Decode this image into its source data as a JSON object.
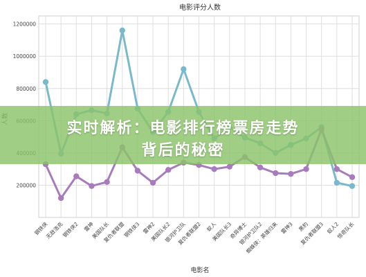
{
  "chart_data": {
    "type": "line",
    "title": "电影评分人数",
    "xlabel": "电影名",
    "ylabel": "人数",
    "categories": [
      "钢铁侠",
      "无敌浩克",
      "钢铁侠2",
      "雷神",
      "美国队长",
      "复仇者联盟",
      "钢铁侠3",
      "雷神2",
      "美国队长2",
      "银河护卫队",
      "复仇者联盟2",
      "蚁人",
      "美国队长3",
      "奇异博士",
      "银河护卫队2",
      "蜘蛛侠：英雄归来",
      "雷神3",
      "黑豹",
      "复仇者联盟3",
      "蚁人2",
      "惊奇队长"
    ],
    "y_ticks": [
      "200000",
      "400000",
      "600000",
      "800000",
      "1000000",
      "1200000"
    ],
    "ylim": [
      0,
      1250000
    ],
    "grid": true,
    "series": [
      {
        "values": [
          840000,
          395000,
          640000,
          665000,
          645000,
          1160000,
          675000,
          530000,
          655000,
          920000,
          655000,
          490000,
          560000,
          495000,
          460000,
          400000,
          450000,
          490000,
          560000,
          215000,
          195000
        ],
        "color": "#7ab8cc"
      },
      {
        "values": [
          330000,
          120000,
          255000,
          195000,
          220000,
          435000,
          290000,
          215000,
          295000,
          340000,
          325000,
          300000,
          315000,
          375000,
          310000,
          275000,
          270000,
          300000,
          545000,
          300000,
          250000
        ],
        "color": "#a87bbd"
      }
    ]
  },
  "banner": {
    "line1": "实时解析：电影排行榜票房走势",
    "line2": "背后的秘密"
  }
}
